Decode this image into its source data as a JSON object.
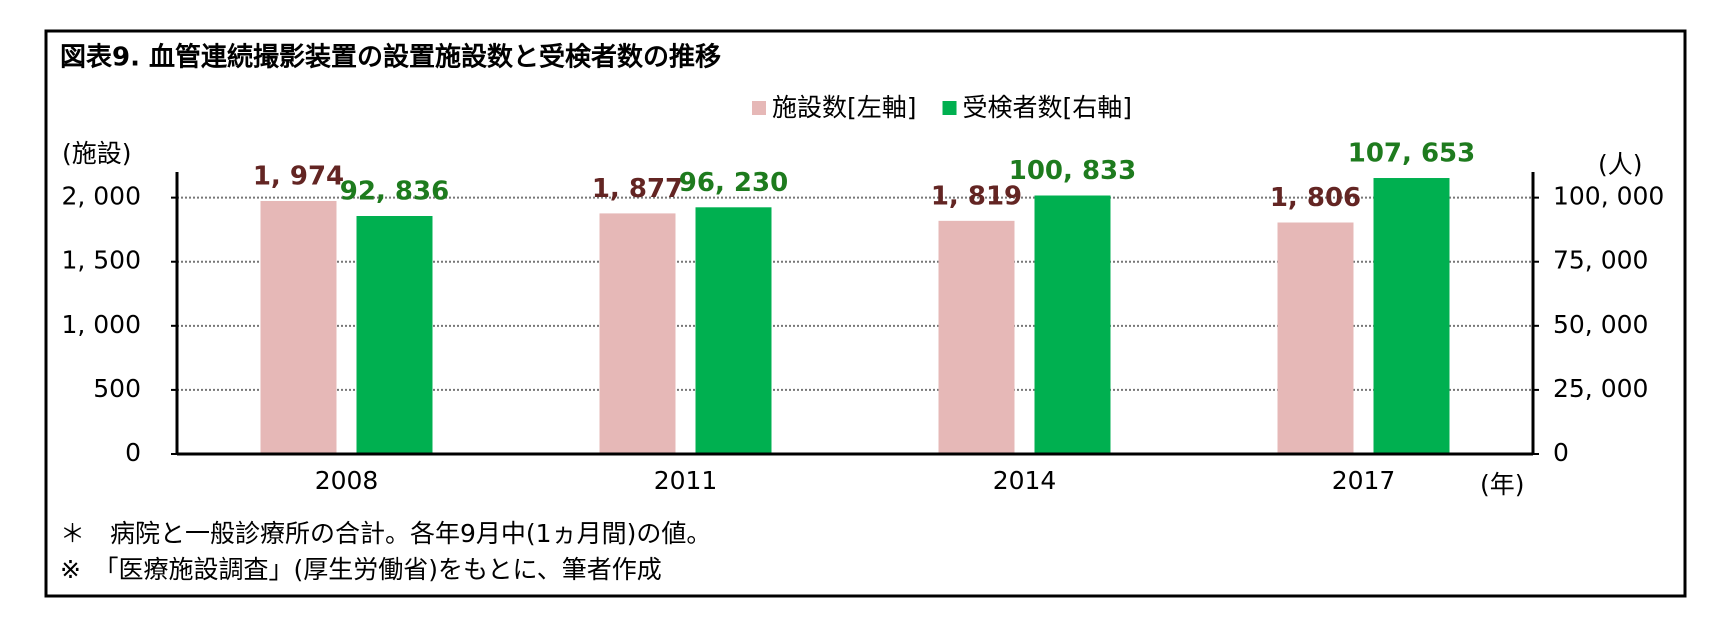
{
  "chart_data": {
    "type": "bar",
    "title": "図表9.  血管連続撮影装置の設置施設数と受検者数の推移",
    "y_label": "(施設)",
    "y2_label": "(人)",
    "x_label": "(年)",
    "categories": [
      "2008",
      "2011",
      "2014",
      "2017"
    ],
    "series": [
      {
        "name": "施設数[左軸]",
        "color": "#e6b8b7",
        "label_color": "#632523",
        "values": [
          1974,
          1877,
          1819,
          1806
        ],
        "value_labels": [
          "1, 974",
          "1, 877",
          "1, 819",
          "1, 806"
        ]
      },
      {
        "name": "受検者数[右軸]",
        "color": "#00b050",
        "label_color": "#1e7b1e",
        "axis": "y2",
        "values": [
          92836,
          96230,
          100833,
          107653
        ],
        "value_labels": [
          "92, 836",
          "96, 230",
          "100, 833",
          "107, 653"
        ]
      }
    ],
    "ylim": [
      0,
      2200
    ],
    "yticks": [
      0,
      500,
      {
        "value": 1000,
        "label": "1, 000"
      },
      {
        "value": 1500,
        "label": "1, 500"
      },
      {
        "value": 2000,
        "label": "2, 000"
      }
    ],
    "y2lim": [
      0,
      110000
    ],
    "y2ticks": [
      0,
      {
        "value": 25000,
        "label": "25, 000"
      },
      {
        "value": 50000,
        "label": "50, 000"
      },
      {
        "value": 75000,
        "label": "75, 000"
      },
      {
        "value": 100000,
        "label": "100, 000"
      }
    ],
    "grid": true,
    "notes": [
      "＊　病院と一般診療所の合計。各年9月中(1ヵ月間)の値。",
      "※　「医療施設調査」(厚生労働省)をもとに、筆者作成"
    ]
  }
}
